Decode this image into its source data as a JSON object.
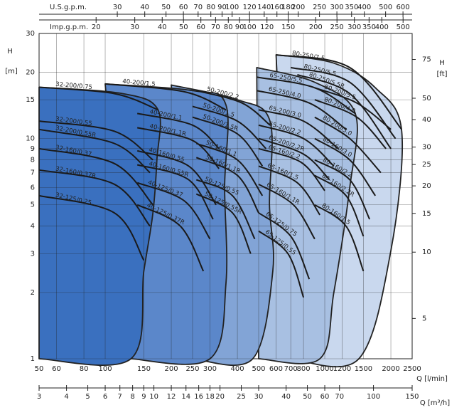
{
  "chart_data": {
    "type": "line",
    "x_label": "Q [l/min]",
    "y_label": "H",
    "y_unit": "[m]",
    "y2_label": "H",
    "y2_unit": "[ft]",
    "log_x": true,
    "log_y": true,
    "grid": true,
    "xlim": [
      50,
      2500
    ],
    "xticks": [
      50,
      60,
      80,
      100,
      150,
      200,
      250,
      300,
      400,
      500,
      600,
      700,
      800,
      1000,
      1200,
      1500,
      2000,
      2500
    ],
    "ylim": [
      1,
      30
    ],
    "yticks": [
      1,
      2,
      3,
      4,
      5,
      6,
      7,
      8,
      9,
      10,
      15,
      20,
      30
    ],
    "y2lim": [
      3.28,
      98.43
    ],
    "y2ticks": [
      5,
      10,
      15,
      20,
      25,
      30,
      40,
      50,
      75
    ],
    "top_axes": [
      {
        "label": "U.S.g.p.m.",
        "lim": [
          13.21,
          660.5
        ],
        "ticks": [
          30,
          40,
          50,
          60,
          70,
          80,
          90,
          100,
          120,
          140,
          160,
          180,
          200,
          250,
          300,
          350,
          400,
          500,
          600
        ]
      },
      {
        "label": "Imp.g.p.m.",
        "lim": [
          11,
          549.9
        ],
        "ticks": [
          20,
          30,
          40,
          50,
          60,
          70,
          80,
          90,
          100,
          120,
          150,
          200,
          250,
          300,
          350,
          400,
          500
        ]
      }
    ],
    "bottom_axis2": {
      "label": "Q [m³/h]",
      "lim": [
        3,
        150
      ],
      "ticks": [
        3,
        4,
        5,
        6,
        7,
        8,
        9,
        10,
        12,
        14,
        16,
        18,
        20,
        25,
        30,
        40,
        50,
        60,
        70,
        100,
        150
      ]
    },
    "families": [
      {
        "color": "#c9d8ee",
        "q": [
          600,
          1100,
          1700,
          2240,
          2000,
          1430,
          700
        ],
        "h": [
          24,
          22,
          17,
          10.8,
          3.1,
          1,
          1
        ],
        "curves": [
          {
            "name": "80-250/7.5",
            "q": [
              600,
              1300,
              2240
            ],
            "h": [
              24,
              21,
              11
            ]
          },
          {
            "name": "80-250/5.5",
            "q": [
              700,
              1300,
              2100
            ],
            "h": [
              21,
              18,
              10
            ]
          },
          {
            "name": "80-250/5.5R",
            "q": [
              750,
              1300,
              2000
            ],
            "h": [
              19.5,
              16,
              9
            ]
          },
          {
            "name": "80-200/5.5",
            "q": [
              900,
              1400,
              2000
            ],
            "h": [
              17,
              14.5,
              11
            ]
          },
          {
            "name": "80-200/4.0",
            "q": [
              900,
              1400,
              1900
            ],
            "h": [
              15,
              12.5,
              9
            ]
          },
          {
            "name": "80-200/3.0",
            "q": [
              900,
              1300,
              1800
            ],
            "h": [
              12.5,
              10,
              7
            ]
          },
          {
            "name": "80-160/3.0",
            "q": [
              900,
              1300,
              1700
            ],
            "h": [
              10,
              8,
              5.5
            ]
          },
          {
            "name": "80-160/2.2",
            "q": [
              900,
              1300,
              1600
            ],
            "h": [
              8,
              6.5,
              4.3
            ]
          },
          {
            "name": "80-160/2.2R",
            "q": [
              900,
              1250,
              1500
            ],
            "h": [
              6.8,
              5.5,
              3.6
            ]
          },
          {
            "name": "80-160/1.5",
            "q": [
              900,
              1250,
              1500
            ],
            "h": [
              5,
              4,
              2.5
            ]
          }
        ]
      },
      {
        "color": "#a8c0e2",
        "q": [
          490,
          900,
          1377,
          1300,
          1100,
          950,
          500
        ],
        "h": [
          21,
          18,
          13,
          6,
          2,
          1,
          1
        ],
        "curves": [
          {
            "name": "65-250/5.5",
            "q": [
              490,
              900,
              1377
            ],
            "h": [
              19,
              17,
              13
            ]
          },
          {
            "name": "65-250/4.0",
            "q": [
              490,
              850,
              1250
            ],
            "h": [
              16.5,
              14.5,
              11
            ]
          },
          {
            "name": "65-200/3.0",
            "q": [
              500,
              800,
              1150
            ],
            "h": [
              13.5,
              12,
              9
            ]
          },
          {
            "name": "65-200/2.2",
            "q": [
              500,
              800,
              1100
            ],
            "h": [
              11.5,
              10,
              7.5
            ]
          },
          {
            "name": "65-200/2.2R",
            "q": [
              500,
              800,
              1050
            ],
            "h": [
              10,
              8.5,
              6.5
            ]
          },
          {
            "name": "65-160/2.2",
            "q": [
              500,
              780,
              1000
            ],
            "h": [
              9,
              7.8,
              5.8
            ]
          },
          {
            "name": "65-160/1.5",
            "q": [
              500,
              750,
              950
            ],
            "h": [
              7.5,
              6.3,
              4.5
            ]
          },
          {
            "name": "65-160/1.1R",
            "q": [
              500,
              720,
              900
            ],
            "h": [
              6.2,
              5,
              3.5
            ]
          },
          {
            "name": "65-125/0.75",
            "q": [
              500,
              700,
              850
            ],
            "h": [
              4.6,
              3.6,
              2.3
            ]
          },
          {
            "name": "65-125/0.55",
            "q": [
              500,
              680,
              800
            ],
            "h": [
              3.8,
              3,
              1.9
            ]
          }
        ]
      },
      {
        "color": "#82a4d6",
        "q": [
          200,
          400,
          563,
          560,
          580,
          470,
          250
        ],
        "h": [
          17.5,
          15,
          12,
          5,
          2.5,
          1,
          1
        ],
        "curves": [
          {
            "name": "50-200/2.2",
            "q": [
              260,
              420,
              563
            ],
            "h": [
              16.5,
              14.5,
              11.5
            ]
          },
          {
            "name": "50-200/1.5",
            "q": [
              250,
              400,
              540
            ],
            "h": [
              14,
              12,
              9
            ]
          },
          {
            "name": "50-200/1.5R",
            "q": [
              250,
              400,
              520
            ],
            "h": [
              12.5,
              10.5,
              7.5
            ]
          },
          {
            "name": "50-160/1.1",
            "q": [
              260,
              400,
              520
            ],
            "h": [
              9.5,
              8,
              5.5
            ]
          },
          {
            "name": "50-160/1.1R",
            "q": [
              260,
              400,
              500
            ],
            "h": [
              8.2,
              6.8,
              4.6
            ]
          },
          {
            "name": "50-125/0.55",
            "q": [
              260,
              380,
              480
            ],
            "h": [
              6.5,
              5.5,
              3.5
            ]
          },
          {
            "name": "50-125/0.55R",
            "q": [
              260,
              380,
              460
            ],
            "h": [
              5.6,
              4.6,
              3
            ]
          }
        ]
      },
      {
        "color": "#5b87ca",
        "q": [
          100,
          250,
          355,
          350,
          355,
          300,
          130
        ],
        "h": [
          17.7,
          16.5,
          14.2,
          6,
          2.2,
          1,
          1
        ],
        "curves": [
          {
            "name": "40-200/1.5",
            "q": [
              100,
              230,
              355
            ],
            "h": [
              17.7,
              16.3,
              13.5
            ]
          },
          {
            "name": "40-200/1.1",
            "q": [
              140,
              250,
              330
            ],
            "h": [
              13,
              11.5,
              9
            ]
          },
          {
            "name": "40-200/1.1R",
            "q": [
              140,
              250,
              330
            ],
            "h": [
              11.2,
              9.8,
              7.3
            ]
          },
          {
            "name": "40-160/0.55",
            "q": [
              140,
              240,
              320
            ],
            "h": [
              8.8,
              7.5,
              5
            ]
          },
          {
            "name": "40-160/0.55R",
            "q": [
              140,
              240,
              310
            ],
            "h": [
              7.6,
              6.5,
              4.3
            ]
          },
          {
            "name": "40-125/0.37",
            "q": [
              140,
              230,
              300
            ],
            "h": [
              6.3,
              5.2,
              3.5
            ]
          },
          {
            "name": "40-125/0.37R",
            "q": [
              140,
              220,
              280
            ],
            "h": [
              5,
              4,
              2.5
            ]
          }
        ]
      },
      {
        "color": "#3a70bf",
        "q": [
          50,
          120,
          174,
          172,
          165,
          150,
          131,
          50
        ],
        "h": [
          17.1,
          16,
          13.5,
          8,
          4.6,
          2.5,
          1,
          1
        ],
        "curves": [
          {
            "name": "32-200/0.75",
            "q": [
              50,
              110,
              174
            ],
            "h": [
              17.1,
              16,
              13.5
            ]
          },
          {
            "name": "32-200/0.55",
            "q": [
              50,
              110,
              165
            ],
            "h": [
              12,
              10.8,
              8
            ]
          },
          {
            "name": "32-200/0.55R",
            "q": [
              50,
              110,
              160
            ],
            "h": [
              11,
              9.5,
              7
            ]
          },
          {
            "name": "32-160/0.37",
            "q": [
              50,
              110,
              165
            ],
            "h": [
              9,
              7.7,
              5
            ]
          },
          {
            "name": "32-160/0.37R",
            "q": [
              50,
              110,
              160
            ],
            "h": [
              7.2,
              6.2,
              4
            ]
          },
          {
            "name": "32-125/0.25",
            "q": [
              50,
              110,
              150
            ],
            "h": [
              5.5,
              4.6,
              2.8
            ]
          }
        ]
      }
    ]
  }
}
